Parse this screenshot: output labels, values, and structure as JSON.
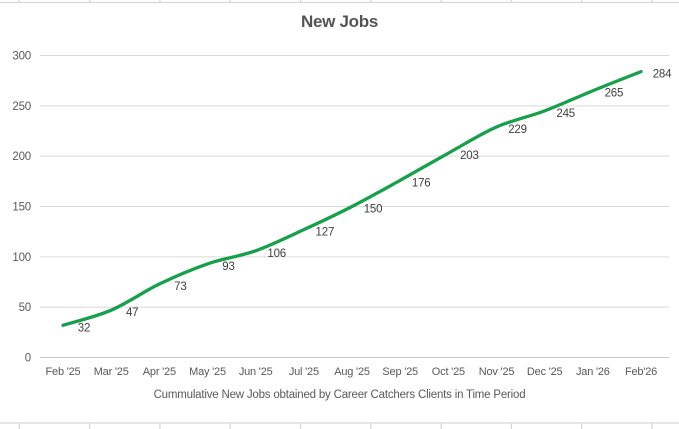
{
  "chart_data": {
    "type": "line",
    "title": "New Jobs",
    "xlabel": "Cummulative New Jobs obtained by Career Catchers Clients in Time Period",
    "ylabel": "",
    "categories": [
      "Feb '25",
      "Mar '25",
      "Apr '25",
      "May '25",
      "Jun '25",
      "Jul '25",
      "Aug '25",
      "Sep '25",
      "Oct '25",
      "Nov '25",
      "Dec '25",
      "Jan '26",
      "Feb'26"
    ],
    "values": [
      32,
      47,
      73,
      93,
      106,
      127,
      150,
      176,
      203,
      229,
      245,
      265,
      284
    ],
    "yticks": [
      0,
      50,
      100,
      150,
      200,
      250,
      300
    ],
    "ylim": [
      0,
      300
    ],
    "grid": true,
    "smooth": true,
    "data_labels": true,
    "legend": "none",
    "colors": {
      "line": "#16A04A",
      "gridline": "#D9D9D9",
      "axis_line": "#C6C6C6",
      "tick_text": "#595959",
      "data_label_text": "#3F3F3F",
      "cell_border": "#D8D8D8"
    }
  }
}
